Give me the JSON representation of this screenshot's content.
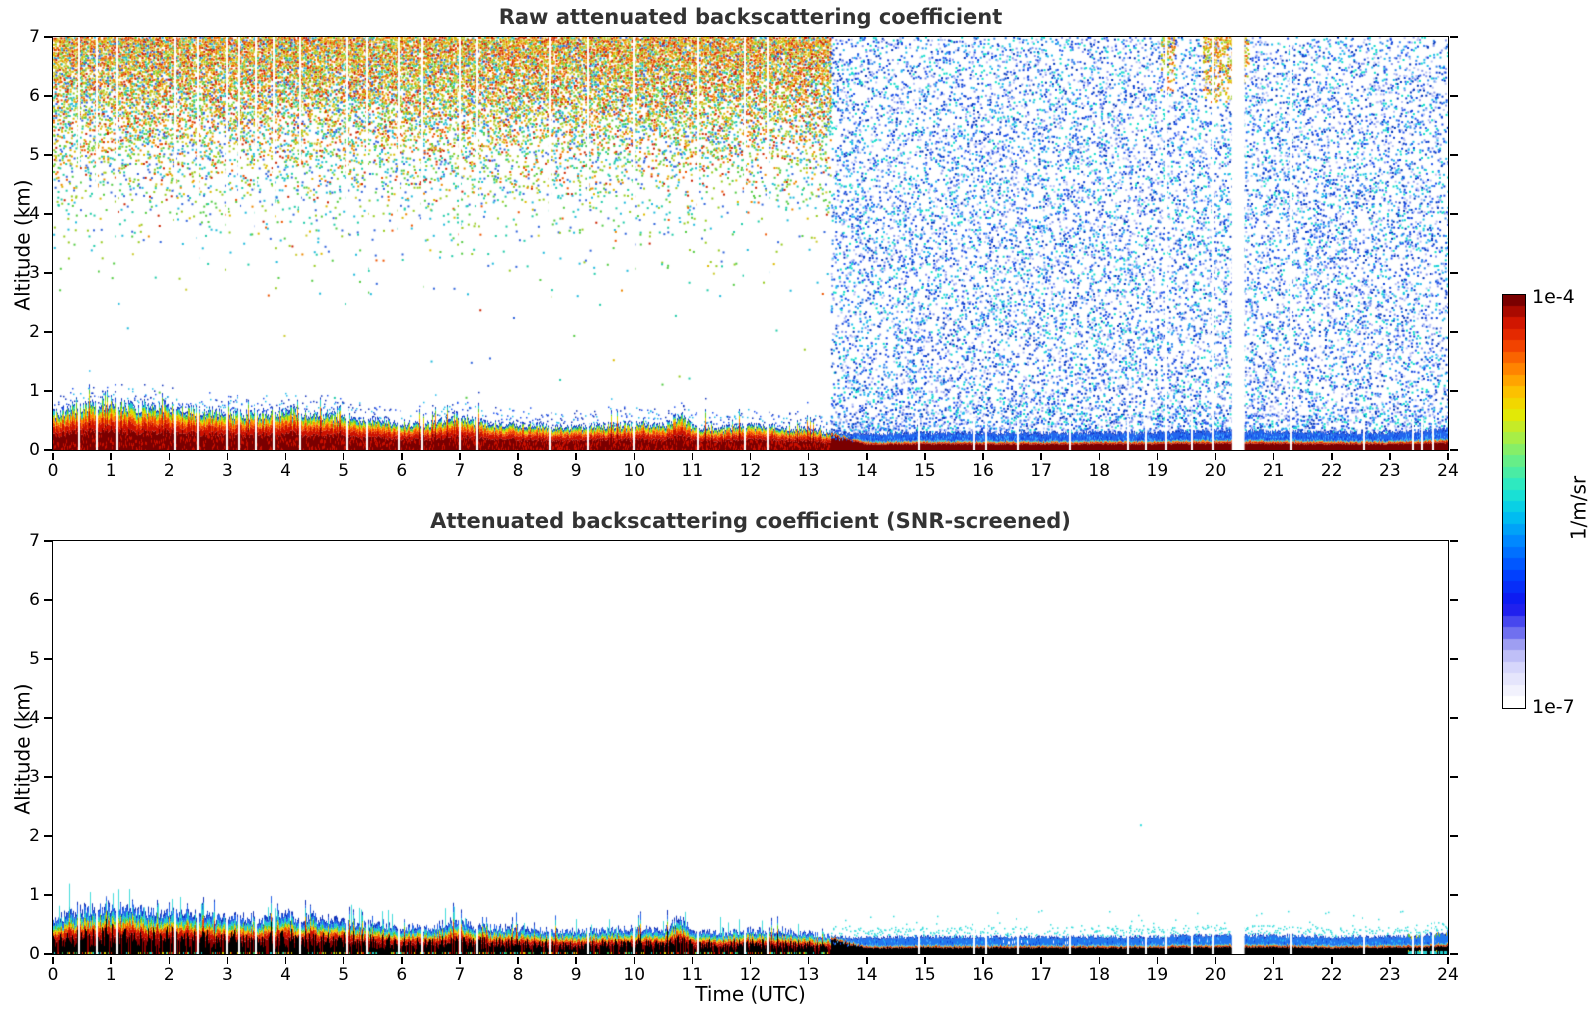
{
  "chart_data": {
    "type": "heatmap",
    "panels": [
      {
        "id": "raw",
        "title": "Raw attenuated backscattering coefficient",
        "background_noise": true
      },
      {
        "id": "screened",
        "title": "Attenuated backscattering coefficient (SNR-screened)",
        "background_noise": false,
        "stray_dots": [
          {
            "hour": 18.7,
            "km": 2.2
          }
        ]
      }
    ],
    "x": {
      "label": "Time (UTC)",
      "range": [
        0,
        24
      ],
      "ticks": [
        0,
        1,
        2,
        3,
        4,
        5,
        6,
        7,
        8,
        9,
        10,
        11,
        12,
        13,
        14,
        15,
        16,
        17,
        18,
        19,
        20,
        21,
        22,
        23,
        24
      ]
    },
    "y": {
      "label": "Altitude (km)",
      "range": [
        0,
        7
      ],
      "ticks": [
        0,
        1,
        2,
        3,
        4,
        5,
        6,
        7
      ]
    },
    "colorbar": {
      "units_label": "1/m/sr",
      "max_label": "1e-4",
      "min_label": "1e-7",
      "scale": "log",
      "min": 1e-07,
      "max": 0.0001,
      "steps": 36,
      "stops": [
        [
          0.0,
          "#ffffff"
        ],
        [
          0.05,
          "#e9e9fc"
        ],
        [
          0.1,
          "#cfcffa"
        ],
        [
          0.14,
          "#a3a3f2"
        ],
        [
          0.18,
          "#6262ee"
        ],
        [
          0.24,
          "#1111ee"
        ],
        [
          0.32,
          "#0044ff"
        ],
        [
          0.4,
          "#0088ff"
        ],
        [
          0.47,
          "#00c8ee"
        ],
        [
          0.53,
          "#22e8cc"
        ],
        [
          0.6,
          "#66ee88"
        ],
        [
          0.66,
          "#aaee44"
        ],
        [
          0.72,
          "#e8e800"
        ],
        [
          0.78,
          "#ffbb00"
        ],
        [
          0.84,
          "#ff7700"
        ],
        [
          0.9,
          "#ee3300"
        ],
        [
          0.95,
          "#cc1100"
        ],
        [
          1.0,
          "#7a0000"
        ]
      ]
    },
    "boundary_layer": {
      "day_night_transition_hour": 13.37,
      "hours": [
        0,
        0.5,
        1,
        1.5,
        2,
        2.5,
        3,
        3.5,
        4,
        4.5,
        5,
        5.5,
        6,
        6.5,
        6.9,
        7.2,
        7.5,
        8,
        8.5,
        9,
        9.5,
        10,
        10.5,
        10.8,
        11,
        11.5,
        12,
        12.5,
        13,
        13.37,
        14,
        15,
        16,
        17,
        18,
        19,
        20,
        21,
        22,
        23,
        23.6,
        24
      ],
      "top_km": [
        0.62,
        0.76,
        0.8,
        0.72,
        0.73,
        0.66,
        0.62,
        0.6,
        0.67,
        0.61,
        0.56,
        0.5,
        0.46,
        0.44,
        0.58,
        0.5,
        0.45,
        0.44,
        0.4,
        0.39,
        0.41,
        0.43,
        0.41,
        0.62,
        0.38,
        0.37,
        0.41,
        0.39,
        0.35,
        0.3,
        0.28,
        0.3,
        0.3,
        0.29,
        0.3,
        0.3,
        0.33,
        0.32,
        0.3,
        0.3,
        0.33,
        0.38
      ]
    },
    "layer_colors": {
      "raw_day": [
        [
          0.42,
          "#7a0000"
        ],
        [
          0.58,
          "#cc1100"
        ],
        [
          0.68,
          "#ee4400"
        ],
        [
          0.76,
          "#ff8800"
        ],
        [
          0.83,
          "#dddd00"
        ],
        [
          0.89,
          "#66cc22"
        ],
        [
          0.95,
          "#22cccc"
        ],
        [
          1.0,
          "#2255ee"
        ]
      ],
      "screened_day": [
        [
          0.38,
          "#8b0000"
        ],
        [
          0.52,
          "#cc1100"
        ],
        [
          0.6,
          "#ee5500"
        ],
        [
          0.67,
          "#eecc00"
        ],
        [
          0.71,
          "#66cc22"
        ],
        [
          0.82,
          "#22cccc"
        ],
        [
          0.92,
          "#2266ee"
        ],
        [
          1.0,
          "#1133bb"
        ]
      ],
      "night_base_raw": "#7a0000",
      "night_base_screened": "#000000",
      "night_band": "#2266ee",
      "night_band_dark": "#1144dd",
      "night_cap": "#1133bb"
    },
    "noise": {
      "day": {
        "end_hour": 13.37,
        "density_by_km": [
          [
            0,
            0.001
          ],
          [
            2,
            0.0012
          ],
          [
            2.5,
            0.003
          ],
          [
            3,
            0.009
          ],
          [
            3.5,
            0.022
          ],
          [
            4,
            0.06
          ],
          [
            4.5,
            0.13
          ],
          [
            5,
            0.25
          ],
          [
            5.5,
            0.42
          ],
          [
            6,
            0.62
          ],
          [
            6.5,
            0.8
          ],
          [
            6.9,
            0.93
          ],
          [
            7,
            0.95
          ]
        ],
        "warm_palette": [
          "#cc2200",
          "#ee5500",
          "#ee8800",
          "#ddbb00",
          "#cccc33"
        ],
        "cool_palette": [
          "#99cc22",
          "#55cc44",
          "#22ccaa",
          "#22bbdd",
          "#3366dd"
        ]
      },
      "night": {
        "start_hour": 13.37,
        "palette": [
          "#2255ee",
          "#1144dd",
          "#0033bb",
          "#3388ee",
          "#22bbee",
          "#11ddcc",
          "#8899ee",
          "#b8c4f8"
        ],
        "density_band_low_km": [
          0.3,
          0.85
        ],
        "density_band": 0.5,
        "density_ambient": 0.25,
        "plumes": [
          {
            "hour": 19.15,
            "half_width": 0.12,
            "min_km": 6.1
          },
          {
            "hour": 20.05,
            "half_width": 0.28,
            "min_km": 5.9
          },
          {
            "hour": 20.45,
            "half_width": 0.1,
            "min_km": 6.2
          }
        ],
        "plume_palette": [
          "#ee8800",
          "#ddcc00",
          "#99cc22",
          "#ee5500"
        ]
      }
    },
    "gaps_hours": [
      0.45,
      0.75,
      1.1,
      2.1,
      2.5,
      3.0,
      3.2,
      3.5,
      3.8,
      4.25,
      5.05,
      5.4,
      5.95,
      6.35,
      7.0,
      7.3,
      8.55,
      9.2,
      10.0,
      11.1,
      11.9,
      12.3,
      14.9,
      15.85,
      16.05,
      16.6,
      17.5,
      18.5,
      18.8,
      19.15,
      19.6,
      19.95,
      21.3,
      22.55,
      23.4,
      23.55,
      23.75
    ],
    "full_height_gap_hours": [
      19.15,
      19.95,
      21.3
    ],
    "wide_gap_hours": {
      "start": 20.28,
      "end": 20.5
    }
  }
}
